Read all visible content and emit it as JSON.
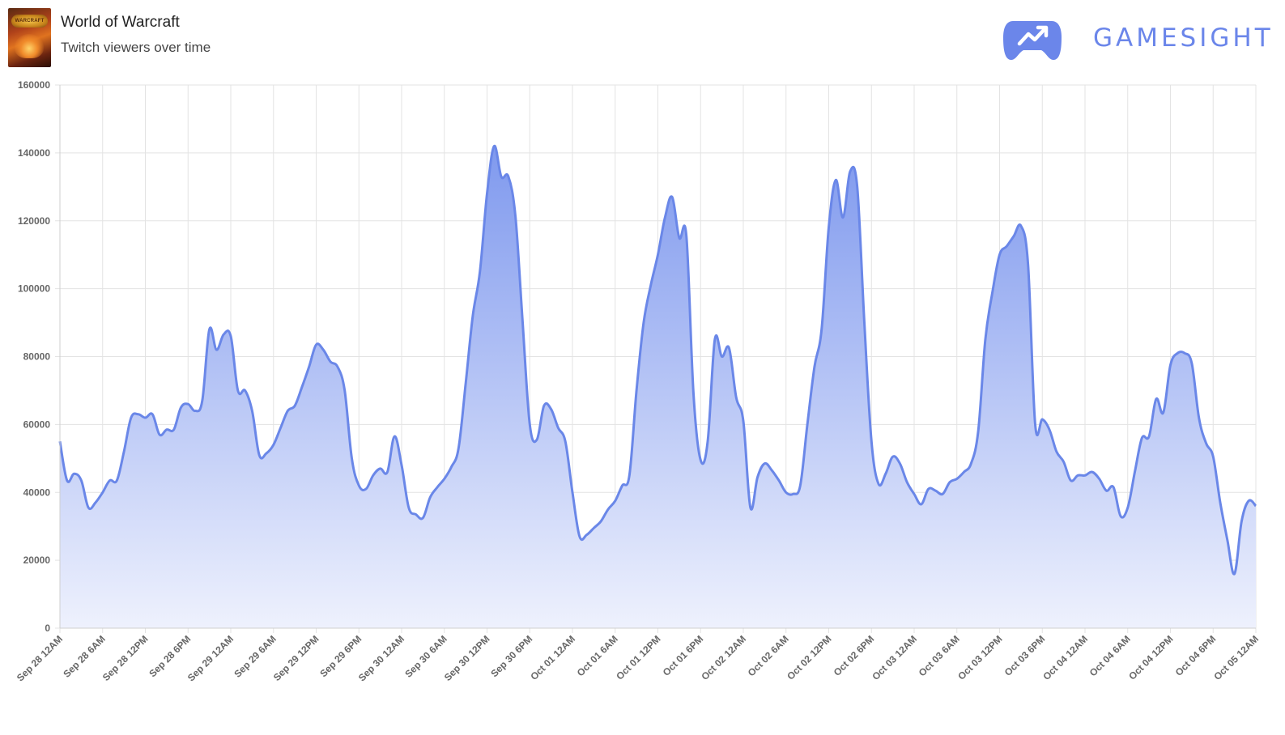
{
  "header": {
    "game_title": "World of Warcraft",
    "subtitle": "Twitch viewers over time",
    "cover_text": "WARCRAFT",
    "brand": "GAMESIGHT",
    "brand_icon": "gamepad-trend-icon"
  },
  "colors": {
    "line": "#6a87e8",
    "fill_top": "#7f99ee",
    "fill_bottom": "#eef1fd",
    "grid": "#e3e3e3",
    "axis_text": "#666666",
    "brand": "#6b86ea"
  },
  "chart_data": {
    "type": "area",
    "title": "Twitch viewers over time",
    "xlabel": "",
    "ylabel": "",
    "ylim": [
      0,
      160000
    ],
    "yticks": [
      0,
      20000,
      40000,
      60000,
      80000,
      100000,
      120000,
      140000,
      160000
    ],
    "xlim": [
      0,
      168
    ],
    "xtick_labels": [
      "Sep 28 12AM",
      "Sep 28 6AM",
      "Sep 28 12PM",
      "Sep 28 6PM",
      "Sep 29 12AM",
      "Sep 29 6AM",
      "Sep 29 12PM",
      "Sep 29 6PM",
      "Sep 30 12AM",
      "Sep 30 6AM",
      "Sep 30 12PM",
      "Sep 30 6PM",
      "Oct 01 12AM",
      "Oct 01 6AM",
      "Oct 01 12PM",
      "Oct 01 6PM",
      "Oct 02 12AM",
      "Oct 02 6AM",
      "Oct 02 12PM",
      "Oct 02 6PM",
      "Oct 03 12AM",
      "Oct 03 6AM",
      "Oct 03 12PM",
      "Oct 03 6PM",
      "Oct 04 12AM",
      "Oct 04 6AM",
      "Oct 04 12PM",
      "Oct 04 6PM",
      "Oct 05 12AM"
    ],
    "grid": true,
    "legend": "none",
    "series": [
      {
        "x": [
          0,
          1,
          2,
          3,
          4,
          5,
          6,
          7,
          8,
          9,
          10,
          11,
          12,
          13,
          14,
          15,
          16,
          17,
          18,
          19,
          20,
          21,
          22,
          23,
          24,
          25,
          26,
          27,
          28,
          29,
          30,
          31,
          32,
          33,
          34,
          35,
          36,
          37,
          38,
          39,
          40,
          41,
          42,
          43,
          44,
          45,
          46,
          47,
          48,
          49,
          50,
          51,
          52,
          53,
          54,
          55,
          56,
          57,
          58,
          59,
          60,
          61,
          62,
          63,
          64,
          65,
          66,
          67,
          68,
          69,
          70,
          71,
          72,
          73,
          74,
          75,
          76,
          77,
          78,
          79,
          80,
          81,
          82,
          83,
          84,
          85,
          86,
          87,
          88,
          89,
          90,
          91,
          92,
          93,
          94,
          95,
          96,
          97,
          98,
          99,
          100,
          101,
          102,
          103,
          104,
          105,
          106,
          107,
          108,
          109,
          110,
          111,
          112,
          113,
          114,
          115,
          116,
          117,
          118,
          119,
          120,
          121,
          122,
          123,
          124,
          125,
          126,
          127,
          128,
          129,
          130,
          131,
          132,
          133,
          134,
          135,
          136,
          137,
          138,
          139,
          140,
          141,
          142,
          143,
          144,
          145,
          146,
          147,
          148,
          149,
          150,
          151,
          152,
          153,
          154,
          155,
          156,
          157,
          158,
          159,
          160,
          161,
          162,
          163,
          164,
          165,
          166,
          167,
          168
        ],
        "values": [
          55000,
          43500,
          45500,
          43500,
          35500,
          37000,
          40000,
          43500,
          43500,
          52000,
          62000,
          63000,
          62000,
          63000,
          57000,
          58500,
          58500,
          65000,
          66000,
          64000,
          67000,
          88000,
          82000,
          86500,
          86000,
          70000,
          70000,
          64000,
          51000,
          51500,
          54000,
          59000,
          64000,
          65500,
          71000,
          77000,
          83500,
          82000,
          78500,
          77000,
          70000,
          50000,
          42000,
          41000,
          45000,
          47000,
          46000,
          56500,
          48000,
          35500,
          33500,
          32500,
          38500,
          41500,
          44000,
          47500,
          53000,
          72000,
          92000,
          105000,
          128000,
          142000,
          133000,
          133000,
          121000,
          90000,
          60000,
          55500,
          65500,
          64500,
          59000,
          55000,
          40000,
          27000,
          27500,
          29500,
          31500,
          35000,
          37500,
          42000,
          45000,
          70000,
          90000,
          101000,
          110000,
          121000,
          127000,
          115000,
          115500,
          69000,
          49500,
          55000,
          85000,
          80000,
          82500,
          68000,
          61000,
          35500,
          44500,
          48500,
          46500,
          43500,
          40000,
          39500,
          42000,
          60000,
          77000,
          88000,
          118000,
          132000,
          121000,
          134500,
          130000,
          90000,
          55000,
          42500,
          45500,
          50500,
          48500,
          43000,
          39500,
          36500,
          41000,
          40500,
          39500,
          43000,
          44000,
          46000,
          48500,
          58000,
          85000,
          99000,
          110000,
          112500,
          115500,
          118500,
          107000,
          60000,
          61500,
          58500,
          52000,
          49000,
          43500,
          45000,
          45000,
          46000,
          44000,
          40500,
          41500,
          33000,
          35500,
          46000,
          56000,
          56500,
          67500,
          63500,
          77500,
          81000,
          81000,
          78000,
          62000,
          54500,
          50500,
          37000,
          26000,
          16000,
          31500,
          37500,
          36000
        ]
      }
    ]
  }
}
